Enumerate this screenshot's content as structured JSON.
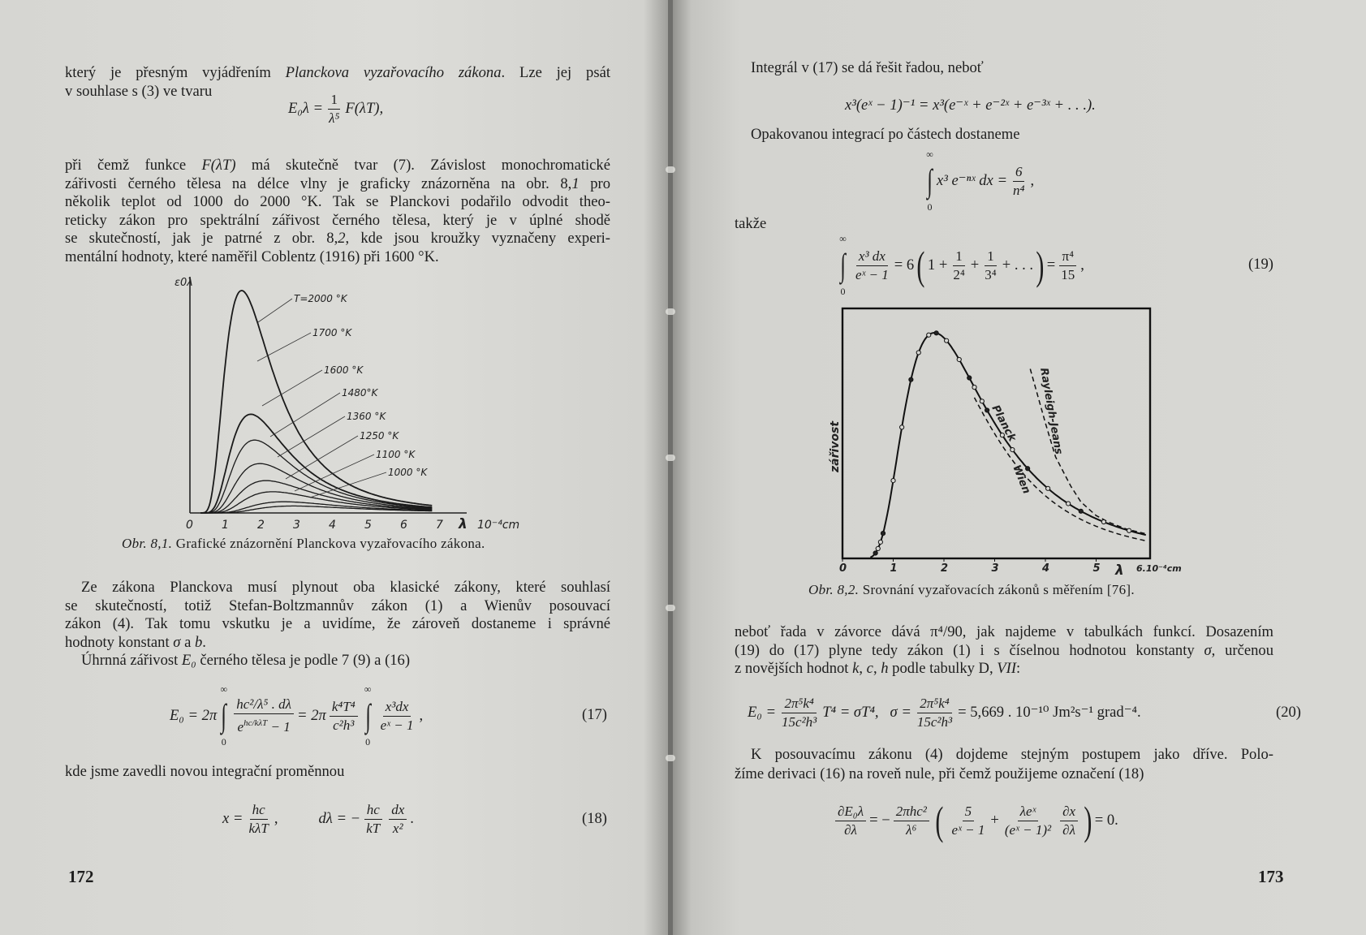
{
  "left": {
    "para1": [
      [
        "který je přesným vyjádřením ",
        {
          "i": "Planckova vyzařovacího zákona"
        },
        ". Lze jej psát"
      ],
      [
        "v souhlase s (3) ve tvaru"
      ]
    ],
    "eq_e0l": {
      "lhs": "E₀λ =",
      "num": "1",
      "den": "λ⁵",
      "rhs": "F(λT),"
    },
    "para2": [
      [
        "při čemž funkce ",
        {
          "i": "F(λT)"
        },
        " má skutečně tvar (7). Závislost monochromatické"
      ],
      [
        "zářivosti černého tělesa na délce vlny je graficky znázorněna na obr. 8,",
        {
          "i": "1"
        },
        " pro"
      ],
      [
        "několik teplot od 1000 do 2000 °K. Tak se Planckovi podařilo odvodit theo-"
      ],
      [
        "reticky zákon pro spektrální zářivost černého tělesa, který je v úplné shodě"
      ],
      [
        "se skutečností, jak je patrné z obr. 8,",
        {
          "i": "2"
        },
        ", kde jsou kroužky vyznačeny experi-"
      ],
      [
        "mentální hodnoty, které naměřil Coblentz (1916) při 1600 °K."
      ]
    ],
    "fig1_caption": {
      "label": "Obr. 8,1.",
      "text": " Grafické znázornění Planckova vyzařovacího zákona."
    },
    "para3": [
      [
        "Ze zákona Planckova musí plynout oba klasické zákony, které souhlasí"
      ],
      [
        "se skutečností, totiž Stefan-Boltzmannův zákon (1) a Wienův posouvací"
      ],
      [
        "zákon (4). Tak tomu vskutku je a uvidíme, že zároveň dostaneme i správné"
      ],
      [
        "hodnoty konstant ",
        {
          "i": "σ"
        },
        " a ",
        {
          "i": "b"
        },
        "."
      ],
      [
        "Úhrnná zářivost ",
        {
          "i": "E₀"
        },
        " černého tělesa je podle 7 (9) a (16)"
      ]
    ],
    "eq17": {
      "lhs": "E₀ = 2π",
      "int_top": "∞",
      "int_bot": "0",
      "num1": "hc²/λ⁵ . dλ",
      "den1_base": "e",
      "den1_sup": "hc/kλT",
      "den1_tail": " − 1",
      "mid": "= 2π",
      "num2": "k⁴T⁴",
      "den2": "c²h³",
      "num3": "x³dx",
      "den3": "eˣ − 1",
      "tail": ",",
      "number": "(17)"
    },
    "para4": [
      [
        "kde jsme zavedli novou integrační proměnnou"
      ]
    ],
    "eq18": {
      "a": "x =",
      "num1": "hc",
      "den1": "kλT",
      "comma": ",",
      "b": "dλ = −",
      "num2": "hc",
      "den2": "kT",
      "num3": "dx",
      "den3": "x²",
      "tail": ".",
      "number": "(18)"
    },
    "page_number": "172"
  },
  "right": {
    "para1": [
      [
        "Integrál v (17) se dá řešit řadou, neboť"
      ]
    ],
    "eq_series": {
      "text": "x³(eˣ − 1)⁻¹ = x³(e⁻ˣ + e⁻²ˣ + e⁻³ˣ + . . .)."
    },
    "para2": [
      [
        "Opakovanou integrací po částech dostaneme"
      ]
    ],
    "eq_int": {
      "int_top": "∞",
      "int_bot": "0",
      "body": "x³ e⁻ⁿˣ dx =",
      "num": "6",
      "den": "n⁴",
      "tail": ","
    },
    "para3": [
      [
        "takže"
      ]
    ],
    "eq19": {
      "int_top": "∞",
      "int_bot": "0",
      "num1": "x³ dx",
      "den1": "eˣ − 1",
      "mid": "= 6",
      "paren_l": "(",
      "a": "1 +",
      "num2": "1",
      "den2": "2⁴",
      "plus": "+",
      "num3": "1",
      "den3": "3⁴",
      "b": "+ . . .",
      "paren_r": ")",
      "eq": "=",
      "num4": "π⁴",
      "den4": "15",
      "tail": ",",
      "number": "(19)"
    },
    "fig2_caption": {
      "label": "Obr. 8,2.",
      "text": " Srovnání vyzařovacích zákonů s měřením [76]."
    },
    "para4": [
      [
        "neboť řada v závorce dává π⁴/90, jak najdeme v tabulkách funkcí. Dosazením"
      ],
      [
        "(19) do (17) plyne tedy zákon (1) i s číselnou hodnotou konstanty ",
        {
          "i": "σ"
        },
        ", určenou"
      ],
      [
        "z novějších hodnot ",
        {
          "i": "k"
        },
        ", ",
        {
          "i": "c"
        },
        ", ",
        {
          "i": "h"
        },
        " podle tabulky D, ",
        {
          "i": "VII"
        },
        ":"
      ]
    ],
    "eq20": {
      "lhs": "E₀ =",
      "num1": "2π⁵k⁴",
      "den1": "15c²h³",
      "mid": "T⁴ = σT⁴,   σ =",
      "num2": "2π⁵k⁴",
      "den2": "15c²h³",
      "tail": "= 5,669 . 10⁻¹⁰ Jm²s⁻¹ grad⁻⁴.",
      "number": "(20)"
    },
    "para5": [
      [
        "K posouvacímu zákonu (4) dojdeme stejným postupem jako dříve. Polo-"
      ],
      [
        "žíme derivaci (16) na roveň nule, při čemž použijeme označení (18)"
      ]
    ],
    "eq_deriv": {
      "num1": "∂E₀λ",
      "den1": "∂λ",
      "mid": "= −",
      "num2": "2πhc²",
      "den2": "λ⁶",
      "pl": "(",
      "num3": "5",
      "den3": "eˣ − 1",
      "plus": "+",
      "num4": "λeˣ",
      "den4": "(eˣ − 1)²",
      "num5": "∂x",
      "den5": "∂λ",
      "pr": ")",
      "tail": "= 0."
    },
    "page_number": "173"
  },
  "chart_data": [
    {
      "type": "line",
      "ylabel": "ε0λ",
      "xlabel": "λ",
      "x_unit": "10⁻⁴cm",
      "x_ticks": [
        "0",
        "1",
        "2",
        "3",
        "4",
        "5",
        "6",
        "7"
      ],
      "xlim": [
        0,
        7
      ],
      "grid": false,
      "series": [
        {
          "name": "T=2000 °K",
          "T": 2000
        },
        {
          "name": "1700 °K",
          "T": 1700
        },
        {
          "name": "1600 °K",
          "T": 1600
        },
        {
          "name": "1480°K",
          "T": 1480
        },
        {
          "name": "1360 °K",
          "T": 1360
        },
        {
          "name": "1250 °K",
          "T": 1250
        },
        {
          "name": "1100 °K",
          "T": 1100
        },
        {
          "name": "1000 °K",
          "T": 1000
        }
      ]
    },
    {
      "type": "line",
      "ylabel": "zářivost",
      "xlabel": "λ",
      "x_ticks": [
        "0",
        "1",
        "2",
        "3",
        "4",
        "5"
      ],
      "x_end_label": "6.10⁻⁴cm",
      "xlim": [
        0,
        6
      ],
      "grid": false,
      "T": 1600,
      "series": [
        {
          "name": "Planck",
          "style": "solid"
        },
        {
          "name": "Wien",
          "style": "dashed"
        },
        {
          "name": "Rayleigh-Jeans",
          "style": "dashed",
          "points": [
            [
              3.7,
              0.84
            ],
            [
              4.0,
              0.6
            ],
            [
              4.2,
              0.45
            ],
            [
              4.5,
              0.32
            ],
            [
              4.7,
              0.25
            ],
            [
              5.0,
              0.19
            ],
            [
              5.25,
              0.16
            ],
            [
              5.6,
              0.13
            ],
            [
              6.0,
              0.108
            ]
          ]
        }
      ],
      "measured_x": [
        0.65,
        0.7,
        0.75,
        0.8,
        1.0,
        1.17,
        1.35,
        1.5,
        1.7,
        1.85,
        2.05,
        2.3,
        2.5,
        2.6,
        2.75,
        2.85,
        3.15,
        3.35,
        3.65,
        4.05,
        4.45,
        4.7,
        5.15,
        5.65
      ]
    }
  ]
}
